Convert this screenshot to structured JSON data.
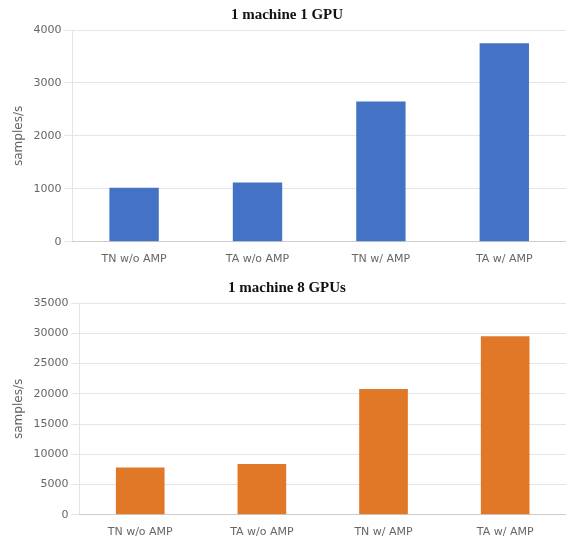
{
  "chart_data": [
    {
      "type": "bar",
      "title": "1 machine 1 GPU",
      "categories": [
        "TN w/o AMP",
        "TA w/o AMP",
        "TN w/ AMP",
        "TA w/ AMP"
      ],
      "values": [
        1020,
        1120,
        2650,
        3750
      ],
      "color": "#4472C4",
      "ylabel": "samples/s",
      "ylim": [
        0,
        4000
      ],
      "yticks": [
        0,
        1000,
        2000,
        3000,
        4000
      ],
      "grid": true
    },
    {
      "type": "bar",
      "title": "1 machine 8 GPUs",
      "categories": [
        "TN w/o AMP",
        "TA w/o AMP",
        "TN w/ AMP",
        "TA w/ AMP"
      ],
      "values": [
        7800,
        8400,
        20800,
        29500
      ],
      "color": "#E07828",
      "ylabel": "samples/s",
      "ylim": [
        0,
        35000
      ],
      "yticks": [
        0,
        5000,
        10000,
        15000,
        20000,
        25000,
        30000,
        35000
      ],
      "grid": true
    }
  ]
}
